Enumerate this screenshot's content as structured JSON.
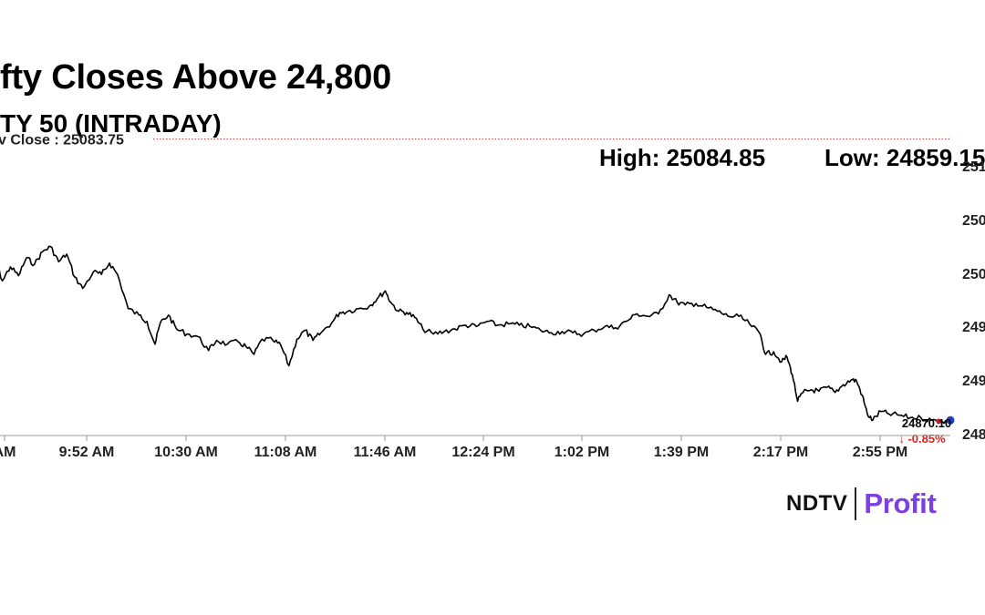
{
  "header": {
    "title": "fty Closes Above 24,800",
    "subtitle": "TY 50 (INTRADAY)",
    "high_text": "High: 25084.85",
    "low_text": "Low: 24859.15"
  },
  "colors": {
    "line": "#000000",
    "prev_close_line": "#c0392b",
    "down": "#e02020",
    "marker_blue": "#1f3fbf",
    "brand_accent": "#7b3fe4"
  },
  "brand": {
    "ndtv": "NDTV",
    "profit": "Profit"
  },
  "chart_data": {
    "type": "line",
    "title": "fty Closes Above 24,800",
    "subtitle": "TY 50 (INTRADAY)",
    "x_tick_labels": [
      "AM",
      "9:52 AM",
      "10:30 AM",
      "11:08 AM",
      "11:46 AM",
      "12:24 PM",
      "1:02 PM",
      "1:39 PM",
      "2:17 PM",
      "2:55 PM"
    ],
    "y_tick_labels": [
      "251",
      "250",
      "250",
      "249",
      "249",
      "248"
    ],
    "ylim": [
      24850,
      25100
    ],
    "prev_close": {
      "label": "v Close : 25083.75",
      "value": 25083.75
    },
    "last": {
      "value_label": "24870.10",
      "change_label": "↓ -0.85%",
      "value": 24870.1
    },
    "high": 25084.85,
    "low": 24859.15,
    "grid": false,
    "series": [
      {
        "values": [
          {
            "t": "9:15",
            "v": 24985
          },
          {
            "t": "9:18",
            "v": 24990
          },
          {
            "t": "9:21",
            "v": 24972
          },
          {
            "t": "9:24",
            "v": 24983
          },
          {
            "t": "9:27",
            "v": 24976
          },
          {
            "t": "9:30",
            "v": 24990
          },
          {
            "t": "9:33",
            "v": 24985
          },
          {
            "t": "9:36",
            "v": 24995
          },
          {
            "t": "9:39",
            "v": 24999
          },
          {
            "t": "9:42",
            "v": 24987
          },
          {
            "t": "9:45",
            "v": 24993
          },
          {
            "t": "9:48",
            "v": 24975
          },
          {
            "t": "9:51",
            "v": 24966
          },
          {
            "t": "9:55",
            "v": 24979
          },
          {
            "t": "9:58",
            "v": 24977
          },
          {
            "t": "10:01",
            "v": 24986
          },
          {
            "t": "10:04",
            "v": 24977
          },
          {
            "t": "10:08",
            "v": 24950
          },
          {
            "t": "10:12",
            "v": 24945
          },
          {
            "t": "10:15",
            "v": 24940
          },
          {
            "t": "10:18",
            "v": 24922
          },
          {
            "t": "10:20",
            "v": 24939
          },
          {
            "t": "10:23",
            "v": 24945
          },
          {
            "t": "10:26",
            "v": 24934
          },
          {
            "t": "10:30",
            "v": 24930
          },
          {
            "t": "10:34",
            "v": 24928
          },
          {
            "t": "10:38",
            "v": 24917
          },
          {
            "t": "10:41",
            "v": 24925
          },
          {
            "t": "10:45",
            "v": 24922
          },
          {
            "t": "10:49",
            "v": 24924
          },
          {
            "t": "10:52",
            "v": 24920
          },
          {
            "t": "10:55",
            "v": 24914
          },
          {
            "t": "10:58",
            "v": 24926
          },
          {
            "t": "11:02",
            "v": 24925
          },
          {
            "t": "11:05",
            "v": 24921
          },
          {
            "t": "11:08",
            "v": 24905
          },
          {
            "t": "11:11",
            "v": 24926
          },
          {
            "t": "11:14",
            "v": 24933
          },
          {
            "t": "11:17",
            "v": 24925
          },
          {
            "t": "11:20",
            "v": 24931
          },
          {
            "t": "11:24",
            "v": 24939
          },
          {
            "t": "11:27",
            "v": 24947
          },
          {
            "t": "11:30",
            "v": 24948
          },
          {
            "t": "11:34",
            "v": 24950
          },
          {
            "t": "11:38",
            "v": 24952
          },
          {
            "t": "11:41",
            "v": 24958
          },
          {
            "t": "11:44",
            "v": 24964
          },
          {
            "t": "11:46",
            "v": 24955
          },
          {
            "t": "11:49",
            "v": 24948
          },
          {
            "t": "11:52",
            "v": 24947
          },
          {
            "t": "11:55",
            "v": 24943
          },
          {
            "t": "11:58",
            "v": 24934
          },
          {
            "t": "12:02",
            "v": 24930
          },
          {
            "t": "12:06",
            "v": 24932
          },
          {
            "t": "12:10",
            "v": 24934
          },
          {
            "t": "12:14",
            "v": 24937
          },
          {
            "t": "12:18",
            "v": 24936
          },
          {
            "t": "12:22",
            "v": 24940
          },
          {
            "t": "12:26",
            "v": 24937
          },
          {
            "t": "12:30",
            "v": 24938
          },
          {
            "t": "12:34",
            "v": 24937
          },
          {
            "t": "12:38",
            "v": 24936
          },
          {
            "t": "12:42",
            "v": 24933
          },
          {
            "t": "12:46",
            "v": 24931
          },
          {
            "t": "12:50",
            "v": 24932
          },
          {
            "t": "12:54",
            "v": 24931
          },
          {
            "t": "12:58",
            "v": 24930
          },
          {
            "t": "13:02",
            "v": 24933
          },
          {
            "t": "13:06",
            "v": 24936
          },
          {
            "t": "13:10",
            "v": 24935
          },
          {
            "t": "13:14",
            "v": 24940
          },
          {
            "t": "13:18",
            "v": 24946
          },
          {
            "t": "13:22",
            "v": 24944
          },
          {
            "t": "13:26",
            "v": 24946
          },
          {
            "t": "13:30",
            "v": 24961
          },
          {
            "t": "13:33",
            "v": 24955
          },
          {
            "t": "13:36",
            "v": 24953
          },
          {
            "t": "13:40",
            "v": 24954
          },
          {
            "t": "13:44",
            "v": 24951
          },
          {
            "t": "13:48",
            "v": 24948
          },
          {
            "t": "13:52",
            "v": 24944
          },
          {
            "t": "13:56",
            "v": 24944
          },
          {
            "t": "14:00",
            "v": 24938
          },
          {
            "t": "14:04",
            "v": 24930
          },
          {
            "t": "14:06",
            "v": 24914
          },
          {
            "t": "14:09",
            "v": 24916
          },
          {
            "t": "14:12",
            "v": 24908
          },
          {
            "t": "14:14",
            "v": 24912
          },
          {
            "t": "14:16",
            "v": 24898
          },
          {
            "t": "14:18",
            "v": 24877
          },
          {
            "t": "14:20",
            "v": 24884
          },
          {
            "t": "14:23",
            "v": 24886
          },
          {
            "t": "14:26",
            "v": 24885
          },
          {
            "t": "14:29",
            "v": 24888
          },
          {
            "t": "14:32",
            "v": 24884
          },
          {
            "t": "14:35",
            "v": 24890
          },
          {
            "t": "14:38",
            "v": 24894
          },
          {
            "t": "14:40",
            "v": 24893
          },
          {
            "t": "14:42",
            "v": 24882
          },
          {
            "t": "14:44",
            "v": 24867
          },
          {
            "t": "14:46",
            "v": 24862
          },
          {
            "t": "14:49",
            "v": 24869
          },
          {
            "t": "14:52",
            "v": 24867
          },
          {
            "t": "14:56",
            "v": 24866
          },
          {
            "t": "15:00",
            "v": 24864
          },
          {
            "t": "15:04",
            "v": 24864
          },
          {
            "t": "15:08",
            "v": 24862
          },
          {
            "t": "15:12",
            "v": 24861
          },
          {
            "t": "15:15",
            "v": 24862
          }
        ]
      }
    ]
  }
}
